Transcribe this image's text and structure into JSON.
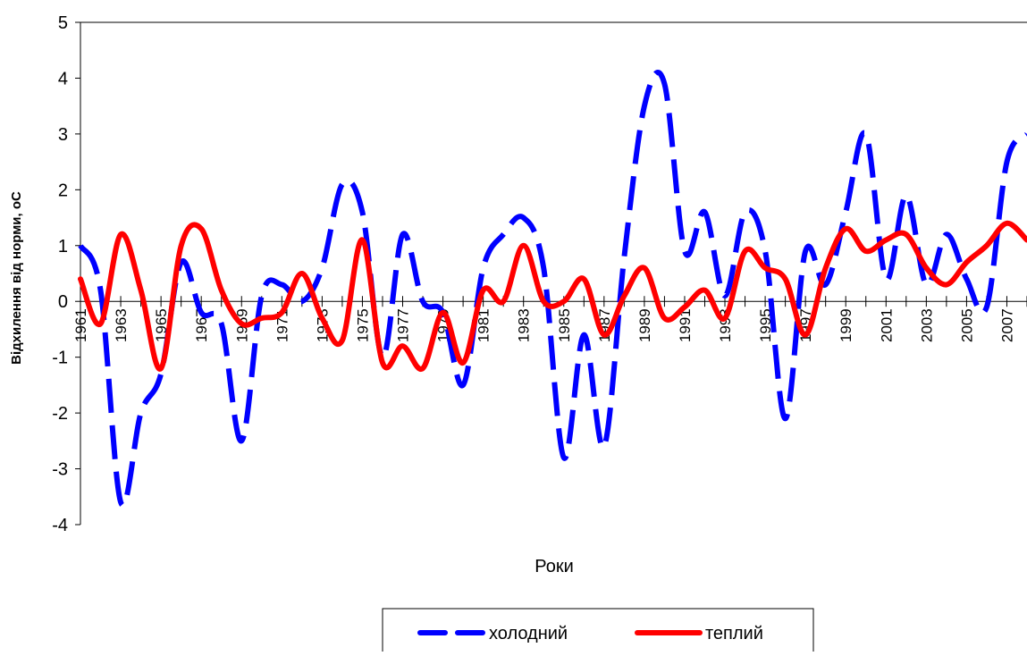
{
  "chart_data": {
    "type": "line",
    "title": "",
    "xlabel": "Роки",
    "ylabel": "Відхилення від норми, оС",
    "ylim": [
      -4,
      5
    ],
    "yticks": [
      5,
      4,
      3,
      2,
      1,
      0,
      -1,
      -2,
      -3,
      -4
    ],
    "x": [
      1961,
      1962,
      1963,
      1964,
      1965,
      1966,
      1967,
      1968,
      1969,
      1970,
      1971,
      1972,
      1973,
      1974,
      1975,
      1976,
      1977,
      1978,
      1979,
      1980,
      1981,
      1982,
      1983,
      1984,
      1985,
      1986,
      1987,
      1988,
      1989,
      1990,
      1991,
      1992,
      1993,
      1994,
      1995,
      1996,
      1997,
      1998,
      1999,
      2000,
      2001,
      2002,
      2003,
      2004,
      2005,
      2006,
      2007,
      2008
    ],
    "xtick_labels": [
      "1961",
      "1963",
      "1965",
      "1967",
      "1969",
      "1971",
      "1973",
      "1975",
      "1977",
      "1979",
      "1981",
      "1983",
      "1985",
      "1987",
      "1989",
      "1991",
      "1993",
      "1995",
      "1997",
      "1999",
      "2001",
      "2003",
      "2005",
      "2007"
    ],
    "grid": false,
    "legend_position": "bottom",
    "series": [
      {
        "name": "холодний",
        "color": "#0000ff",
        "style": "dashed",
        "values": [
          1.0,
          0.2,
          -3.6,
          -2.0,
          -1.3,
          0.7,
          -0.2,
          -0.4,
          -2.5,
          0.1,
          0.3,
          0.0,
          0.6,
          2.1,
          1.6,
          -1.0,
          1.2,
          0.0,
          -0.2,
          -1.5,
          0.6,
          1.2,
          1.5,
          0.6,
          -2.8,
          -0.6,
          -2.6,
          0.8,
          3.5,
          3.9,
          0.9,
          1.6,
          0.1,
          1.6,
          0.9,
          -2.1,
          0.9,
          0.3,
          1.6,
          3.0,
          0.4,
          1.9,
          0.3,
          1.2,
          0.4,
          -0.1,
          2.5,
          3.0
        ]
      },
      {
        "name": "теплий",
        "color": "#ff0000",
        "style": "solid",
        "values": [
          0.4,
          -0.4,
          1.2,
          0.2,
          -1.2,
          1.0,
          1.3,
          0.2,
          -0.4,
          -0.3,
          -0.2,
          0.5,
          -0.3,
          -0.7,
          1.1,
          -1.1,
          -0.8,
          -1.2,
          -0.2,
          -1.1,
          0.2,
          0.0,
          1.0,
          0.0,
          0.0,
          0.4,
          -0.6,
          0.1,
          0.6,
          -0.3,
          -0.1,
          0.2,
          -0.3,
          0.9,
          0.6,
          0.4,
          -0.6,
          0.6,
          1.3,
          0.9,
          1.1,
          1.2,
          0.6,
          0.3,
          0.7,
          1.0,
          1.4,
          1.1
        ]
      }
    ]
  }
}
